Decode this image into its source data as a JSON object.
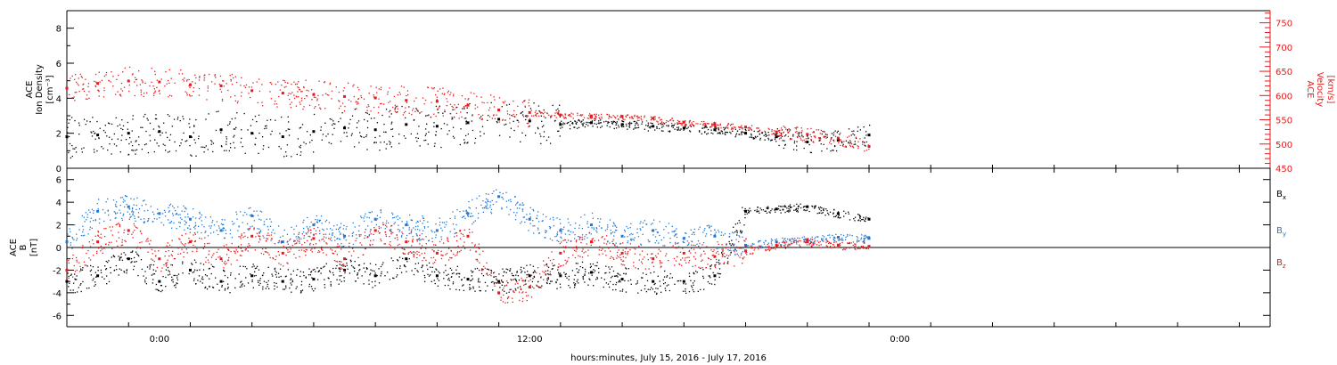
{
  "colors": {
    "axis": "#000000",
    "density": "#000000",
    "velocity": "#e41a1c",
    "bx": "#000000",
    "by": "#1f78d1",
    "bz": "#e41a1c"
  },
  "chart_data": [
    {
      "type": "scatter",
      "panel": "top",
      "ylabel_line1": "ACE",
      "ylabel_line2": "Ion Density",
      "ylabel_units": "[cm⁻³]",
      "ylim": [
        0,
        9
      ],
      "ytick_labels": [
        "0",
        "2",
        "4",
        "6",
        "8"
      ],
      "ytick_values": [
        0,
        2,
        4,
        6,
        8
      ],
      "y2label_line1": "ACE",
      "y2label_line2": "Velocity",
      "y2label_units": "[km/s]",
      "y2lim": [
        450,
        775
      ],
      "y2tick_labels": [
        "450",
        "500",
        "550",
        "600",
        "650",
        "700",
        "750"
      ],
      "y2tick_values": [
        450,
        500,
        550,
        600,
        650,
        700,
        750
      ],
      "xlim_hours": [
        -3,
        36
      ],
      "series": [
        {
          "axis": "left",
          "x": [
            -3.0,
            -2.0,
            -1.0,
            0.0,
            1.0,
            2.0,
            3.0,
            4.0,
            5.0,
            6.0,
            7.0,
            8.0,
            9.0,
            10.0,
            11.0,
            12.0,
            13.0,
            14.0,
            15.0,
            16.0,
            17.0,
            18.0,
            19.0,
            20.0,
            21.0,
            22.0,
            23.0
          ],
          "y": [
            1.8,
            1.9,
            2.0,
            2.1,
            1.8,
            2.2,
            2.0,
            1.8,
            2.1,
            2.3,
            2.2,
            2.5,
            2.4,
            2.6,
            2.8,
            2.7,
            2.5,
            2.6,
            2.5,
            2.4,
            2.3,
            2.2,
            2.0,
            1.8,
            1.5,
            1.6,
            1.9
          ]
        },
        {
          "axis": "right",
          "x": [
            -3.0,
            -2.0,
            -1.0,
            0.0,
            1.0,
            2.0,
            3.0,
            4.0,
            5.0,
            6.0,
            7.0,
            8.0,
            9.0,
            10.0,
            11.0,
            12.0,
            13.0,
            14.0,
            15.0,
            16.0,
            17.0,
            18.0,
            19.0,
            20.0,
            21.0,
            22.0,
            23.0
          ],
          "y": [
            615,
            625,
            630,
            628,
            622,
            620,
            610,
            605,
            602,
            598,
            595,
            590,
            588,
            580,
            570,
            565,
            560,
            558,
            557,
            553,
            545,
            540,
            535,
            525,
            520,
            512,
            495
          ]
        }
      ]
    },
    {
      "type": "scatter",
      "panel": "bottom",
      "ylabel_line1": "ACE",
      "ylabel_line2": "B",
      "ylabel_units": "[nT]",
      "ylim": [
        -7,
        7
      ],
      "ytick_labels": [
        "-6",
        "-4",
        "-2",
        "0",
        "2",
        "4",
        "6"
      ],
      "ytick_values": [
        -6,
        -4,
        -2,
        0,
        2,
        4,
        6
      ],
      "xlim_hours": [
        -3,
        36
      ],
      "xtick_labels": [
        "0:00",
        "12:00",
        "0:00"
      ],
      "xtick_values": [
        0,
        12,
        24
      ],
      "xlabel": "hours:minutes, July 15, 2016 - July 17, 2016",
      "legend": [
        "Bx",
        "By",
        "Bz"
      ],
      "series": [
        {
          "name": "Bx",
          "x": [
            -3.0,
            -2.0,
            -1.0,
            0.0,
            1.0,
            2.0,
            3.0,
            4.0,
            5.0,
            6.0,
            7.0,
            8.0,
            9.0,
            10.0,
            11.0,
            12.0,
            13.0,
            14.0,
            15.0,
            16.0,
            17.0,
            18.0,
            19.0,
            20.0,
            21.0,
            22.0,
            23.0
          ],
          "y": [
            -3.0,
            -2.5,
            -1.0,
            -3.0,
            -2.0,
            -3.0,
            -2.5,
            -3.0,
            -2.8,
            -2.0,
            -2.5,
            -1.0,
            -2.5,
            -2.8,
            -3.0,
            -2.5,
            -2.5,
            -2.2,
            -2.8,
            -3.0,
            -3.0,
            -2.5,
            3.2,
            3.4,
            3.6,
            3.0,
            2.5
          ]
        },
        {
          "name": "By",
          "x": [
            -3.0,
            -2.0,
            -1.0,
            0.0,
            1.0,
            2.0,
            3.0,
            4.0,
            5.0,
            6.0,
            7.0,
            8.0,
            9.0,
            10.0,
            11.0,
            12.0,
            13.0,
            14.0,
            15.0,
            16.0,
            17.0,
            18.0,
            19.0,
            20.0,
            21.0,
            22.0,
            23.0
          ],
          "y": [
            0.5,
            3.2,
            3.6,
            3.0,
            2.5,
            1.5,
            2.8,
            0.5,
            2.0,
            1.0,
            2.5,
            2.0,
            1.5,
            3.0,
            4.5,
            2.5,
            1.5,
            2.0,
            1.0,
            1.5,
            0.8,
            1.0,
            0.2,
            0.5,
            0.7,
            0.9,
            0.8
          ]
        },
        {
          "name": "Bz",
          "x": [
            -3.0,
            -2.0,
            -1.0,
            0.0,
            1.0,
            2.0,
            3.0,
            4.0,
            5.0,
            6.0,
            7.0,
            8.0,
            9.0,
            10.0,
            11.0,
            12.0,
            13.0,
            14.0,
            15.0,
            16.0,
            17.0,
            18.0,
            19.0,
            20.0,
            21.0,
            22.0,
            23.0
          ],
          "y": [
            -2.0,
            0.5,
            1.5,
            -1.0,
            0.5,
            -1.0,
            1.0,
            -0.5,
            0.8,
            -1.0,
            1.5,
            0.5,
            -0.5,
            1.0,
            -4.0,
            -3.5,
            -0.5,
            0.5,
            -0.5,
            -1.0,
            -0.5,
            -0.8,
            -0.3,
            0.2,
            0.5,
            0.2,
            0.1
          ]
        }
      ]
    }
  ]
}
